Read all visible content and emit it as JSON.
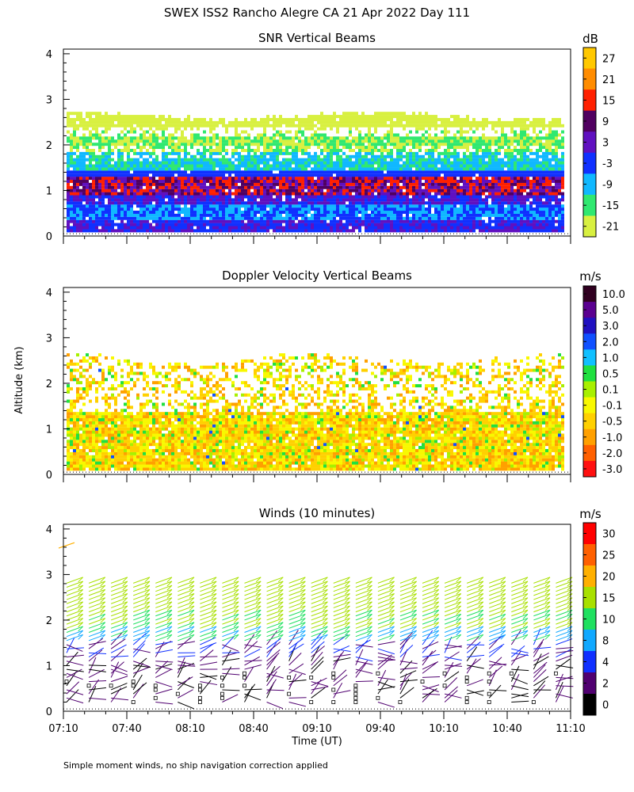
{
  "page": {
    "title": "SWEX ISS2 Rancho Alegre CA  21 Apr 2022 Day 111",
    "y_axis_label": "Altitude (km)",
    "x_axis_label": "Time (UT)",
    "footnote": "Simple moment winds, no ship navigation correction applied"
  },
  "chart_data": [
    {
      "type": "heatmap",
      "title": "SNR Vertical Beams",
      "ylabel": "Altitude (km)",
      "ylim": [
        0,
        4
      ],
      "yticks": [
        "0",
        "1",
        "2",
        "3",
        "4"
      ],
      "x_range_utc": [
        "07:10",
        "11:10"
      ],
      "colorbar": {
        "unit": "dB",
        "tick_labels": [
          "27",
          "21",
          "15",
          "9",
          "3",
          "-3",
          "-9",
          "-15",
          "-21"
        ],
        "colors_top_to_bottom": [
          "#ffc800",
          "#ff8c00",
          "#ff2000",
          "#500060",
          "#6010c0",
          "#1030ff",
          "#10b8ff",
          "#30e870",
          "#d8f040"
        ]
      },
      "description_values": {
        "data_top_km": 2.7,
        "strong_layer_km": [
          0.8,
          1.4
        ],
        "signal_base_km": 0.15
      }
    },
    {
      "type": "heatmap",
      "title": "Doppler Velocity Vertical Beams",
      "ylabel": "Altitude (km)",
      "ylim": [
        0,
        4
      ],
      "yticks": [
        "0",
        "1",
        "2",
        "3",
        "4"
      ],
      "x_range_utc": [
        "07:10",
        "11:10"
      ],
      "colorbar": {
        "unit": "m/s",
        "tick_labels": [
          "10.0",
          "5.0",
          "3.0",
          "2.0",
          "1.0",
          "0.5",
          "0.1",
          "-0.1",
          "-0.5",
          "-1.0",
          "-2.0",
          "-3.0"
        ],
        "colors_top_to_bottom": [
          "#300020",
          "#5a0090",
          "#2010c0",
          "#1050ff",
          "#10c0ff",
          "#20e040",
          "#a8f000",
          "#f8f800",
          "#ffd000",
          "#ffa000",
          "#ff6000",
          "#ff1010"
        ]
      },
      "description_values": {
        "data_top_km": 2.65,
        "data_base_km": 0.15
      }
    },
    {
      "type": "scatter",
      "title": "Winds (10 minutes)",
      "ylabel": "Altitude (km)",
      "xlabel": "Time (UT)",
      "ylim": [
        0,
        4
      ],
      "yticks": [
        "0",
        "1",
        "2",
        "3",
        "4"
      ],
      "xticks": [
        "07:10",
        "07:40",
        "08:10",
        "08:40",
        "09:10",
        "09:40",
        "10:10",
        "10:40",
        "11:10"
      ],
      "interval_minutes": 10,
      "profiles": 23,
      "colorbar": {
        "unit": "m/s",
        "tick_labels": [
          "30",
          "25",
          "20",
          "15",
          "10",
          "8",
          "4",
          "2",
          "0"
        ],
        "colors_top_to_bottom": [
          "#ff0000",
          "#ff6000",
          "#ffb000",
          "#a8e000",
          "#20e060",
          "#10a8ff",
          "#1030ff",
          "#500070",
          "#000000"
        ]
      }
    }
  ]
}
